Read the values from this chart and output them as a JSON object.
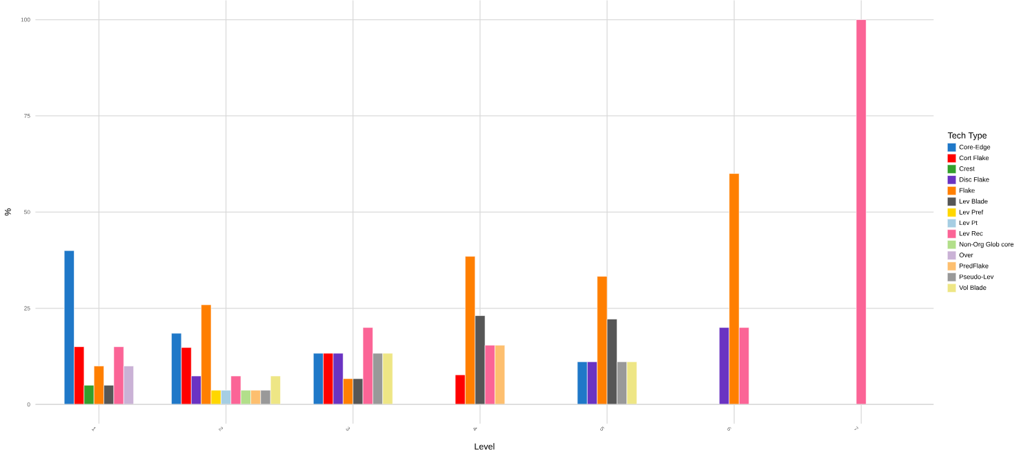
{
  "chart_data": {
    "type": "bar",
    "xlabel": "Level",
    "ylabel": "%",
    "legend_title": "Tech Type",
    "categories": [
      "1",
      "2",
      "3",
      "4",
      "5",
      "6",
      "7"
    ],
    "ylim": [
      -5,
      105
    ],
    "yticks": [
      0,
      25,
      50,
      75,
      100
    ],
    "grid": true,
    "legend": "right",
    "series": [
      {
        "name": "Core-Edge",
        "color": "#1f78c8",
        "values": [
          40,
          18.5,
          13.3,
          null,
          11.1,
          null,
          null
        ]
      },
      {
        "name": "Cort Flake",
        "color": "#ff0000",
        "values": [
          15,
          14.8,
          13.3,
          7.7,
          null,
          null,
          null
        ]
      },
      {
        "name": "Crest",
        "color": "#33a02c",
        "values": [
          5,
          null,
          null,
          null,
          null,
          null,
          null
        ]
      },
      {
        "name": "Disc Flake",
        "color": "#6a33c2",
        "values": [
          null,
          7.4,
          13.3,
          null,
          11.1,
          20,
          null
        ]
      },
      {
        "name": "Flake",
        "color": "#ff7f00",
        "values": [
          10,
          25.9,
          6.7,
          38.5,
          33.3,
          60,
          null
        ]
      },
      {
        "name": "Lev Blade",
        "color": "#565656",
        "values": [
          5,
          null,
          6.7,
          23.1,
          22.2,
          null,
          null
        ]
      },
      {
        "name": "Lev Pref",
        "color": "#ffd700",
        "values": [
          null,
          3.7,
          null,
          null,
          null,
          null,
          null
        ]
      },
      {
        "name": "Lev Pt",
        "color": "#a6cee3",
        "values": [
          null,
          3.7,
          null,
          null,
          null,
          null,
          null
        ]
      },
      {
        "name": "Lev Rec",
        "color": "#fb6496",
        "values": [
          15,
          7.4,
          20,
          15.4,
          null,
          20,
          100
        ]
      },
      {
        "name": "Non-Org Glob core",
        "color": "#b2df8a",
        "values": [
          null,
          3.7,
          null,
          null,
          null,
          null,
          null
        ]
      },
      {
        "name": "Over",
        "color": "#cab2d6",
        "values": [
          10,
          null,
          null,
          null,
          null,
          null,
          null
        ]
      },
      {
        "name": "PredFlake",
        "color": "#fdbf6f",
        "values": [
          null,
          3.7,
          null,
          15.4,
          null,
          null,
          null
        ]
      },
      {
        "name": "Pseudo-Lev",
        "color": "#999999",
        "values": [
          null,
          3.7,
          13.3,
          null,
          11.1,
          null,
          null
        ]
      },
      {
        "name": "Vol Blade",
        "color": "#eee685",
        "values": [
          null,
          7.4,
          13.3,
          null,
          11.1,
          null,
          null
        ]
      }
    ]
  }
}
